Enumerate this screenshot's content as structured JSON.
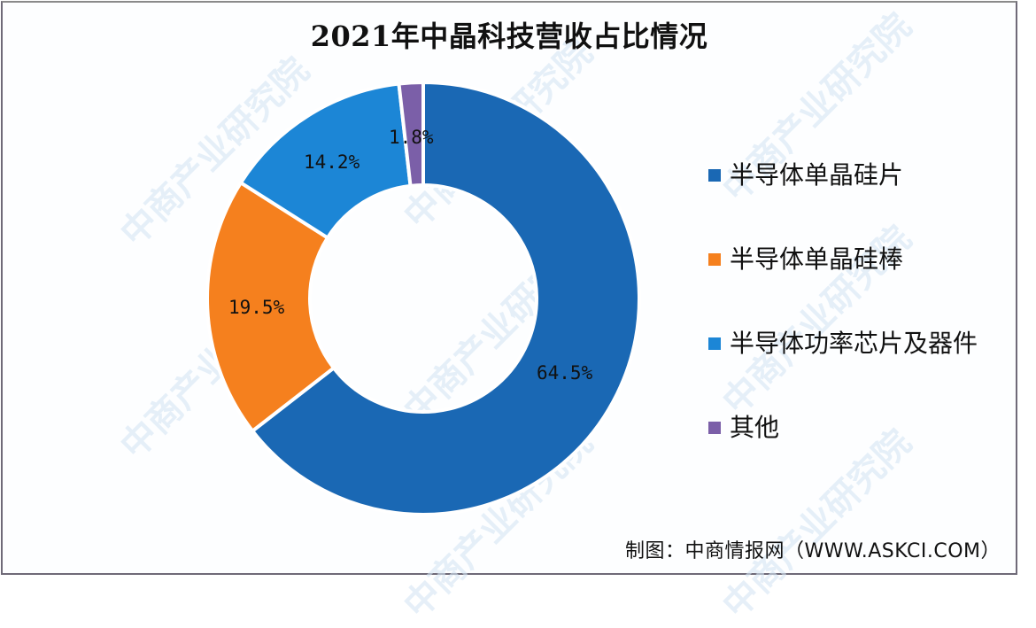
{
  "chart_data": {
    "type": "pie",
    "subtype": "donut",
    "title": "2021年中晶科技营收占比情况",
    "categories": [
      "半导体单晶硅片",
      "半导体单晶硅棒",
      "半导体功率芯片及器件",
      "其他"
    ],
    "values": [
      64.5,
      19.5,
      14.2,
      1.8
    ],
    "data_labels": [
      "64.5%",
      "19.5%",
      "14.2%",
      "1.8%"
    ],
    "colors": [
      "#1a68b4",
      "#f5801e",
      "#1c86d6",
      "#7b5fa8"
    ],
    "legend_position": "right",
    "start_angle": "12 o'clock, clockwise"
  },
  "title": "2021年中晶科技营收占比情况",
  "legend": [
    {
      "label": "半导体单晶硅片",
      "color": "#1a68b4"
    },
    {
      "label": "半导体单晶硅棒",
      "color": "#f5801e"
    },
    {
      "label": "半导体功率芯片及器件",
      "color": "#1c86d6"
    },
    {
      "label": "其他",
      "color": "#7b5fa8"
    }
  ],
  "labels": {
    "s0": "64.5%",
    "s1": "19.5%",
    "s2": "14.2%",
    "s3": "1.8%"
  },
  "source": "制图：中商情报网（WWW.ASKCI.COM）",
  "watermark": "中商产业研究院"
}
